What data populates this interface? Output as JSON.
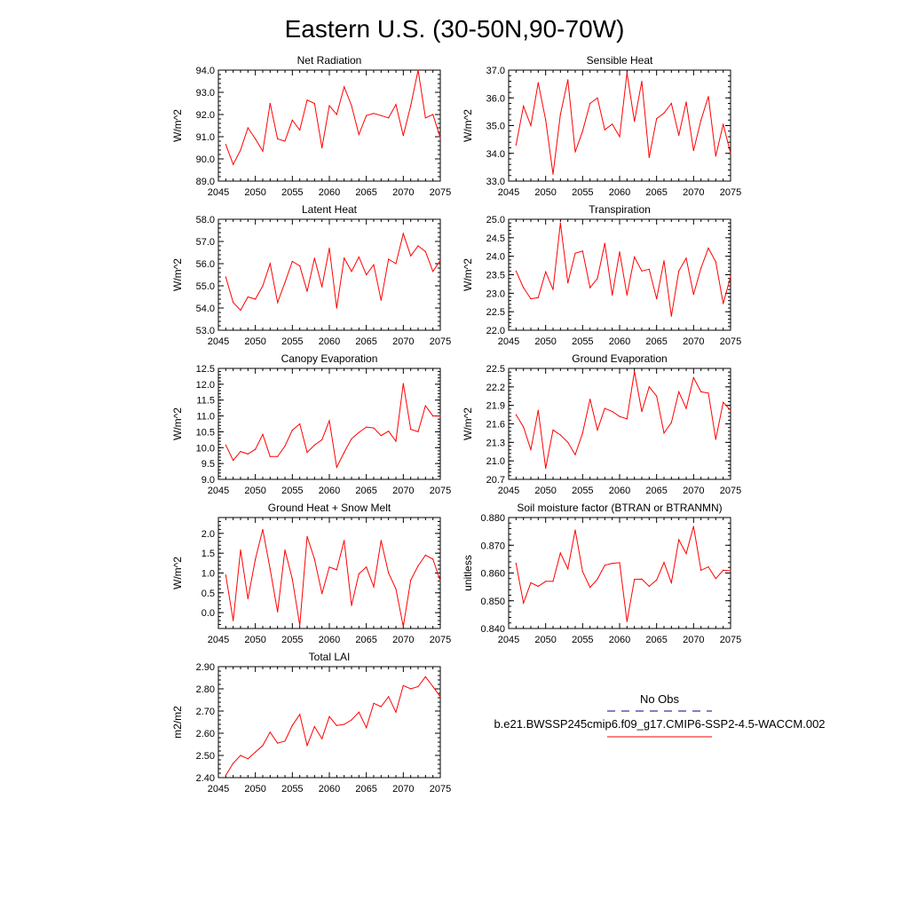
{
  "title": "Eastern U.S. (30-50N,90-70W)",
  "colors": {
    "series": "#ff0000",
    "obs": "#00008b",
    "frame": "#000000"
  },
  "legend": {
    "obs_label": "No Obs",
    "model_label": "b.e21.BWSSP245cmip6.f09_g17.CMIP6-SSP2-4.5-WACCM.002"
  },
  "chart_data": [
    {
      "type": "line",
      "title": "Net Radiation",
      "ylabel": "W/m^2",
      "xlim": [
        2045,
        2075
      ],
      "ylim": [
        89.0,
        94.0
      ],
      "yticks": [
        "89.0",
        "90.0",
        "91.0",
        "92.0",
        "93.0",
        "94.0"
      ],
      "xticks": [
        "2045",
        "2050",
        "2055",
        "2060",
        "2065",
        "2070",
        "2075"
      ],
      "x": [
        2046,
        2047,
        2048,
        2049,
        2050,
        2051,
        2052,
        2053,
        2054,
        2055,
        2056,
        2057,
        2058,
        2059,
        2060,
        2061,
        2062,
        2063,
        2064,
        2065,
        2066,
        2067,
        2068,
        2069,
        2070,
        2071,
        2072,
        2073,
        2074,
        2075
      ],
      "values": [
        90.65,
        89.75,
        90.4,
        91.4,
        90.9,
        90.35,
        92.5,
        90.9,
        90.8,
        91.75,
        91.3,
        92.65,
        92.5,
        90.5,
        92.4,
        92.0,
        93.25,
        92.4,
        91.1,
        91.95,
        92.05,
        91.95,
        91.85,
        92.45,
        91.05,
        92.4,
        94.0,
        91.85,
        92.0,
        90.95
      ],
      "series": [
        {
          "name": "b.e21.BWSSP245cmip6.f09_g17.CMIP6-SSP2-4.5-WACCM.002"
        }
      ]
    },
    {
      "type": "line",
      "title": "Sensible Heat",
      "ylabel": "W/m^2",
      "xlim": [
        2045,
        2075
      ],
      "ylim": [
        33.0,
        37.0
      ],
      "yticks": [
        "33.0",
        "34.0",
        "35.0",
        "36.0",
        "37.0"
      ],
      "xticks": [
        "2045",
        "2050",
        "2055",
        "2060",
        "2065",
        "2070",
        "2075"
      ],
      "x": [
        2046,
        2047,
        2048,
        2049,
        2050,
        2051,
        2052,
        2053,
        2054,
        2055,
        2056,
        2057,
        2058,
        2059,
        2060,
        2061,
        2062,
        2063,
        2064,
        2065,
        2066,
        2067,
        2068,
        2069,
        2070,
        2071,
        2072,
        2073,
        2074,
        2075
      ],
      "values": [
        34.3,
        35.7,
        35.0,
        36.55,
        35.2,
        33.25,
        35.4,
        36.65,
        34.05,
        34.8,
        35.8,
        36.0,
        34.85,
        35.05,
        34.6,
        36.9,
        35.15,
        36.6,
        33.85,
        35.25,
        35.45,
        35.8,
        34.65,
        35.85,
        34.1,
        35.2,
        36.05,
        33.9,
        35.05,
        34.0
      ],
      "series": [
        {
          "name": "b.e21.BWSSP245cmip6.f09_g17.CMIP6-SSP2-4.5-WACCM.002"
        }
      ]
    },
    {
      "type": "line",
      "title": "Latent Heat",
      "ylabel": "W/m^2",
      "xlim": [
        2045,
        2075
      ],
      "ylim": [
        53.0,
        58.0
      ],
      "yticks": [
        "53.0",
        "54.0",
        "55.0",
        "56.0",
        "57.0",
        "58.0"
      ],
      "xticks": [
        "2045",
        "2050",
        "2055",
        "2060",
        "2065",
        "2070",
        "2075"
      ],
      "x": [
        2046,
        2047,
        2048,
        2049,
        2050,
        2051,
        2052,
        2053,
        2054,
        2055,
        2056,
        2057,
        2058,
        2059,
        2060,
        2061,
        2062,
        2063,
        2064,
        2065,
        2066,
        2067,
        2068,
        2069,
        2070,
        2071,
        2072,
        2073,
        2074,
        2075
      ],
      "values": [
        55.4,
        54.25,
        53.9,
        54.5,
        54.4,
        55.0,
        56.0,
        54.25,
        55.15,
        56.1,
        55.9,
        54.75,
        56.25,
        54.95,
        56.7,
        54.0,
        56.25,
        55.65,
        56.3,
        55.5,
        55.95,
        54.35,
        56.2,
        56.0,
        57.35,
        56.35,
        56.8,
        56.55,
        55.65,
        56.15
      ],
      "series": [
        {
          "name": "b.e21.BWSSP245cmip6.f09_g17.CMIP6-SSP2-4.5-WACCM.002"
        }
      ]
    },
    {
      "type": "line",
      "title": "Transpiration",
      "ylabel": "W/m^2",
      "xlim": [
        2045,
        2075
      ],
      "ylim": [
        22.0,
        25.0
      ],
      "yticks": [
        "22.0",
        "22.5",
        "23.0",
        "23.5",
        "24.0",
        "24.5",
        "25.0"
      ],
      "xticks": [
        "2045",
        "2050",
        "2055",
        "2060",
        "2065",
        "2070",
        "2075"
      ],
      "x": [
        2046,
        2047,
        2048,
        2049,
        2050,
        2051,
        2052,
        2053,
        2054,
        2055,
        2056,
        2057,
        2058,
        2059,
        2060,
        2061,
        2062,
        2063,
        2064,
        2065,
        2066,
        2067,
        2068,
        2069,
        2070,
        2071,
        2072,
        2073,
        2074,
        2075
      ],
      "values": [
        23.6,
        23.15,
        22.85,
        22.88,
        23.58,
        23.1,
        24.9,
        23.28,
        24.08,
        24.14,
        23.15,
        23.4,
        24.35,
        22.95,
        24.12,
        22.95,
        23.98,
        23.6,
        23.65,
        22.85,
        23.88,
        22.38,
        23.6,
        23.95,
        22.97,
        23.68,
        24.22,
        23.85,
        22.72,
        23.45
      ],
      "series": [
        {
          "name": "b.e21.BWSSP245cmip6.f09_g17.CMIP6-SSP2-4.5-WACCM.002"
        }
      ]
    },
    {
      "type": "line",
      "title": "Canopy Evaporation",
      "ylabel": "W/m^2",
      "xlim": [
        2045,
        2075
      ],
      "ylim": [
        9.0,
        12.5
      ],
      "yticks": [
        "9.0",
        "9.5",
        "10.0",
        "10.5",
        "11.0",
        "11.5",
        "12.0",
        "12.5"
      ],
      "xticks": [
        "2045",
        "2050",
        "2055",
        "2060",
        "2065",
        "2070",
        "2075"
      ],
      "x": [
        2046,
        2047,
        2048,
        2049,
        2050,
        2051,
        2052,
        2053,
        2054,
        2055,
        2056,
        2057,
        2058,
        2059,
        2060,
        2061,
        2062,
        2063,
        2064,
        2065,
        2066,
        2067,
        2068,
        2069,
        2070,
        2071,
        2072,
        2073,
        2074,
        2075
      ],
      "values": [
        10.08,
        9.6,
        9.88,
        9.8,
        9.95,
        10.42,
        9.72,
        9.72,
        10.05,
        10.55,
        10.75,
        9.85,
        10.08,
        10.25,
        10.85,
        9.38,
        9.85,
        10.28,
        10.48,
        10.65,
        10.62,
        10.38,
        10.52,
        10.2,
        12.02,
        10.58,
        10.5,
        11.32,
        11.0,
        11.0
      ],
      "series": [
        {
          "name": "b.e21.BWSSP245cmip6.f09_g17.CMIP6-SSP2-4.5-WACCM.002"
        }
      ]
    },
    {
      "type": "line",
      "title": "Ground Evaporation",
      "ylabel": "W/m^2",
      "xlim": [
        2045,
        2075
      ],
      "ylim": [
        20.7,
        22.5
      ],
      "yticks": [
        "20.7",
        "21.0",
        "21.3",
        "21.6",
        "21.9",
        "22.2",
        "22.5"
      ],
      "xticks": [
        "2045",
        "2050",
        "2055",
        "2060",
        "2065",
        "2070",
        "2075"
      ],
      "x": [
        2046,
        2047,
        2048,
        2049,
        2050,
        2051,
        2052,
        2053,
        2054,
        2055,
        2056,
        2057,
        2058,
        2059,
        2060,
        2061,
        2062,
        2063,
        2064,
        2065,
        2066,
        2067,
        2068,
        2069,
        2070,
        2071,
        2072,
        2073,
        2074,
        2075
      ],
      "values": [
        21.75,
        21.55,
        21.18,
        21.82,
        20.88,
        21.5,
        21.42,
        21.3,
        21.1,
        21.45,
        22.0,
        21.5,
        21.85,
        21.8,
        21.72,
        21.68,
        22.45,
        21.8,
        22.2,
        22.05,
        21.45,
        21.62,
        22.12,
        21.85,
        22.35,
        22.12,
        22.1,
        21.35,
        21.95,
        21.82
      ],
      "series": [
        {
          "name": "b.e21.BWSSP245cmip6.f09_g17.CMIP6-SSP2-4.5-WACCM.002"
        }
      ]
    },
    {
      "type": "line",
      "title": "Ground Heat + Snow Melt",
      "ylabel": "W/m^2",
      "xlim": [
        2045,
        2075
      ],
      "ylim": [
        -0.4,
        2.4
      ],
      "yticks": [
        "0.0",
        "0.5",
        "1.0",
        "1.5",
        "2.0"
      ],
      "xticks": [
        "2045",
        "2050",
        "2055",
        "2060",
        "2065",
        "2070",
        "2075"
      ],
      "x": [
        2046,
        2047,
        2048,
        2049,
        2050,
        2051,
        2052,
        2053,
        2054,
        2055,
        2056,
        2057,
        2058,
        2059,
        2060,
        2061,
        2062,
        2063,
        2064,
        2065,
        2066,
        2067,
        2068,
        2069,
        2070,
        2071,
        2072,
        2073,
        2074,
        2075
      ],
      "values": [
        0.95,
        -0.2,
        1.58,
        0.35,
        1.35,
        2.1,
        1.1,
        0.02,
        1.58,
        0.85,
        -0.32,
        1.92,
        1.35,
        0.48,
        1.15,
        1.08,
        1.82,
        0.18,
        0.98,
        1.15,
        0.65,
        1.82,
        1.0,
        0.6,
        -0.35,
        0.82,
        1.18,
        1.45,
        1.35,
        0.8
      ],
      "series": [
        {
          "name": "b.e21.BWSSP245cmip6.f09_g17.CMIP6-SSP2-4.5-WACCM.002"
        }
      ]
    },
    {
      "type": "line",
      "title": "Soil moisture factor (BTRAN or BTRANMN)",
      "ylabel": "unitless",
      "xlim": [
        2045,
        2075
      ],
      "ylim": [
        0.84,
        0.88
      ],
      "yticks": [
        "0.840",
        "0.850",
        "0.860",
        "0.870",
        "0.880"
      ],
      "xticks": [
        "2045",
        "2050",
        "2055",
        "2060",
        "2065",
        "2070",
        "2075"
      ],
      "x": [
        2046,
        2047,
        2048,
        2049,
        2050,
        2051,
        2052,
        2053,
        2054,
        2055,
        2056,
        2057,
        2058,
        2059,
        2060,
        2061,
        2062,
        2063,
        2064,
        2065,
        2066,
        2067,
        2068,
        2069,
        2070,
        2071,
        2072,
        2073,
        2074,
        2075
      ],
      "values": [
        0.8635,
        0.8492,
        0.8565,
        0.8552,
        0.857,
        0.857,
        0.8672,
        0.8615,
        0.8755,
        0.8605,
        0.8548,
        0.8578,
        0.8628,
        0.8635,
        0.8637,
        0.8425,
        0.8577,
        0.8578,
        0.8552,
        0.8575,
        0.8638,
        0.8565,
        0.872,
        0.867,
        0.8768,
        0.861,
        0.8622,
        0.858,
        0.861,
        0.8608
      ],
      "series": [
        {
          "name": "b.e21.BWSSP245cmip6.f09_g17.CMIP6-SSP2-4.5-WACCM.002"
        }
      ]
    },
    {
      "type": "line",
      "title": "Total LAI",
      "ylabel": "m2/m2",
      "xlim": [
        2045,
        2075
      ],
      "ylim": [
        2.4,
        2.9
      ],
      "yticks": [
        "2.40",
        "2.50",
        "2.60",
        "2.70",
        "2.80",
        "2.90"
      ],
      "xticks": [
        "2045",
        "2050",
        "2055",
        "2060",
        "2065",
        "2070",
        "2075"
      ],
      "x": [
        2046,
        2047,
        2048,
        2049,
        2050,
        2051,
        2052,
        2053,
        2054,
        2055,
        2056,
        2057,
        2058,
        2059,
        2060,
        2061,
        2062,
        2063,
        2064,
        2065,
        2066,
        2067,
        2068,
        2069,
        2070,
        2071,
        2072,
        2073,
        2074,
        2075
      ],
      "values": [
        2.41,
        2.465,
        2.5,
        2.485,
        2.515,
        2.545,
        2.605,
        2.555,
        2.565,
        2.635,
        2.685,
        2.545,
        2.63,
        2.575,
        2.675,
        2.635,
        2.64,
        2.66,
        2.695,
        2.625,
        2.735,
        2.72,
        2.765,
        2.695,
        2.815,
        2.8,
        2.81,
        2.855,
        2.81,
        2.765
      ],
      "series": [
        {
          "name": "b.e21.BWSSP245cmip6.f09_g17.CMIP6-SSP2-4.5-WACCM.002"
        }
      ]
    }
  ]
}
